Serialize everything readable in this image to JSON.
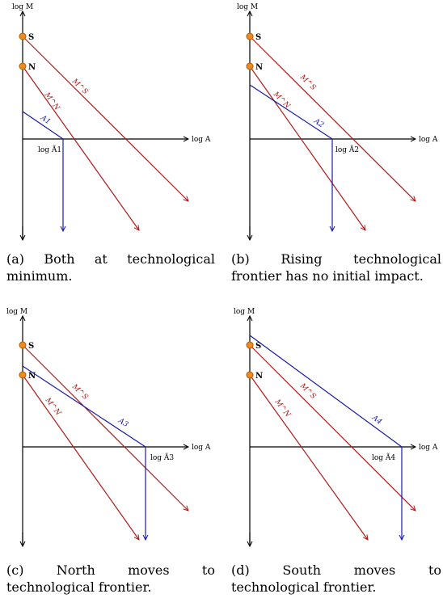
{
  "panels": [
    {
      "id": "a",
      "y_label": "log M",
      "x_label": "log A",
      "point_s": "S",
      "point_n": "N",
      "line_ms": "M^S",
      "line_mn": "M^N",
      "line_a": "A1",
      "tick_label": "log Ã1",
      "caption": "(a) Both at technological minimum."
    },
    {
      "id": "b",
      "y_label": "log M",
      "x_label": "log A",
      "point_s": "S",
      "point_n": "N",
      "line_ms": "M^S",
      "line_mn": "M^N",
      "line_a": "A2",
      "tick_label": "log Ã2",
      "caption": "(b) Rising technological frontier has no initial impact."
    },
    {
      "id": "c",
      "y_label": "log M",
      "x_label": "log A",
      "point_s": "S",
      "point_n": "N",
      "line_ms": "M^S",
      "line_mn": "M^N",
      "line_a": "A3",
      "tick_label": "log Ã3",
      "caption": "(c) North moves to technological frontier."
    },
    {
      "id": "d",
      "y_label": "log M",
      "x_label": "log A",
      "point_s": "S",
      "point_n": "N",
      "line_ms": "M^S",
      "line_mn": "M^N",
      "line_a": "A4",
      "tick_label": "log Ã4",
      "caption": "(d) South moves to technological frontier."
    }
  ],
  "colors": {
    "axis": "#000000",
    "red": "#b01818",
    "blue": "#1a1aa8",
    "point_fill": "#f08a1e",
    "point_stroke": "#b05a00"
  }
}
